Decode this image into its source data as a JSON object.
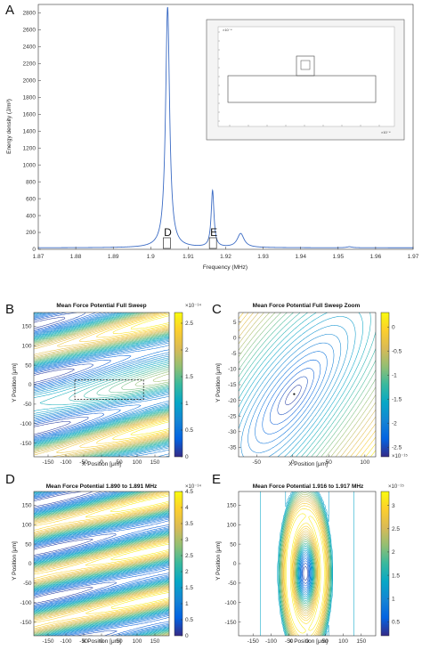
{
  "panel_labels": [
    "A",
    "B",
    "C",
    "D",
    "E"
  ],
  "colors": {
    "spectrum_line": "#3b6bc4",
    "parula": [
      "#352a87",
      "#0363e1",
      "#1485d4",
      "#06a7c6",
      "#38b99e",
      "#92bf73",
      "#d9ba56",
      "#fcce2e",
      "#f9fb0e"
    ]
  },
  "chart_data": [
    {
      "id": "A",
      "type": "line",
      "title": "",
      "xlabel": "Frequency (MHz)",
      "ylabel": "Energy density (J/m³)",
      "xlim": [
        1.87,
        1.97
      ],
      "ylim": [
        0,
        2900
      ],
      "xticks": [
        "1.87",
        "1.88",
        "1.89",
        "1.9",
        "1.91",
        "1.92",
        "1.93",
        "1.94",
        "1.95",
        "1.96",
        "1.97"
      ],
      "yticks": [
        "0",
        "200",
        "400",
        "600",
        "800",
        "1000",
        "1200",
        "1400",
        "1600",
        "1800",
        "2000",
        "2200",
        "2400",
        "2600",
        "2800"
      ],
      "peaks": [
        {
          "x": 1.9045,
          "height": 2850,
          "width": 0.00065
        },
        {
          "x": 1.9165,
          "height": 670,
          "width": 0.00045
        },
        {
          "x": 1.924,
          "height": 165,
          "width": 0.0011
        },
        {
          "x": 1.953,
          "height": 12,
          "width": 0.0008
        }
      ],
      "baseline": 18,
      "markers": [
        {
          "label": "D",
          "x_range": [
            1.89,
            1.891
          ],
          "display_x": 1.9043
        },
        {
          "label": "E",
          "x_range": [
            1.916,
            1.917
          ],
          "display_x": 1.9166
        }
      ],
      "inset": {
        "type": "geometry-schematic",
        "yexp": "×10⁻⁴",
        "xexp": "×10⁻⁴"
      }
    },
    {
      "id": "B",
      "type": "contour",
      "title": "Mean Force Potential Full Sweep",
      "xlabel": "X Position [μm]",
      "ylabel": "Y Position [μm]",
      "xticks": [
        "-150",
        "-100",
        "-50",
        "0",
        "50",
        "100",
        "150"
      ],
      "yticks": [
        "150",
        "100",
        "50",
        "0",
        "-50",
        "-100",
        "-150"
      ],
      "xlim": [
        -190,
        190
      ],
      "ylim": [
        -185,
        185
      ],
      "colorbar": {
        "ticks": [
          "2.5",
          "2",
          "1.5",
          "1",
          "0.5",
          "0"
        ],
        "min": 0,
        "max": 2.7,
        "exponent": "×10⁻¹⁴"
      }
    },
    {
      "id": "C",
      "type": "contour",
      "title": "Mean Force Potential Full Sweep Zoom",
      "xlabel": "X Position [μm]",
      "ylabel": "Y Position [μm]",
      "xticks": [
        "-50",
        "0",
        "50",
        "100"
      ],
      "yticks": [
        "5",
        "0",
        "-5",
        "-10",
        "-15",
        "-20",
        "-25",
        "-30",
        "-35"
      ],
      "xlim": [
        -75,
        115
      ],
      "ylim": [
        -38,
        8
      ],
      "colorbar": {
        "ticks": [
          "0",
          "-0.5",
          "-1",
          "-1.5",
          "-2",
          "-2.5"
        ],
        "min": -2.7,
        "max": 0.3,
        "exponent": "×10⁻¹⁵"
      }
    },
    {
      "id": "D",
      "type": "contour",
      "title": "Mean Force Potential 1.890 to 1.891 MHz",
      "xlabel": "X Position [μm]",
      "ylabel": "Y Position [μm]",
      "xticks": [
        "-150",
        "-100",
        "-50",
        "0",
        "50",
        "100",
        "150"
      ],
      "yticks": [
        "150",
        "100",
        "50",
        "0",
        "-50",
        "-100",
        "-150"
      ],
      "xlim": [
        -190,
        190
      ],
      "ylim": [
        -185,
        185
      ],
      "colorbar": {
        "ticks": [
          "4.5",
          "4",
          "3.5",
          "3",
          "2.5",
          "2",
          "1.5",
          "1",
          "0.5",
          "0"
        ],
        "min": 0,
        "max": 4.5,
        "exponent": "×10⁻¹⁴"
      }
    },
    {
      "id": "E",
      "type": "contour",
      "title": "Mean Force Potential 1.916 to 1.917 MHz",
      "xlabel": "X Position [μm]",
      "ylabel": "Y Position [μm]",
      "xticks": [
        "-150",
        "-100",
        "-50",
        "0",
        "50",
        "100",
        "150"
      ],
      "yticks": [
        "150",
        "100",
        "50",
        "0",
        "-50",
        "-100",
        "-150"
      ],
      "xlim": [
        -190,
        190
      ],
      "ylim": [
        -185,
        185
      ],
      "colorbar": {
        "ticks": [
          "3",
          "2.5",
          "2",
          "1.5",
          "1",
          "0.5"
        ],
        "min": 0.2,
        "max": 3.3,
        "exponent": "×10⁻¹⁵"
      }
    }
  ]
}
